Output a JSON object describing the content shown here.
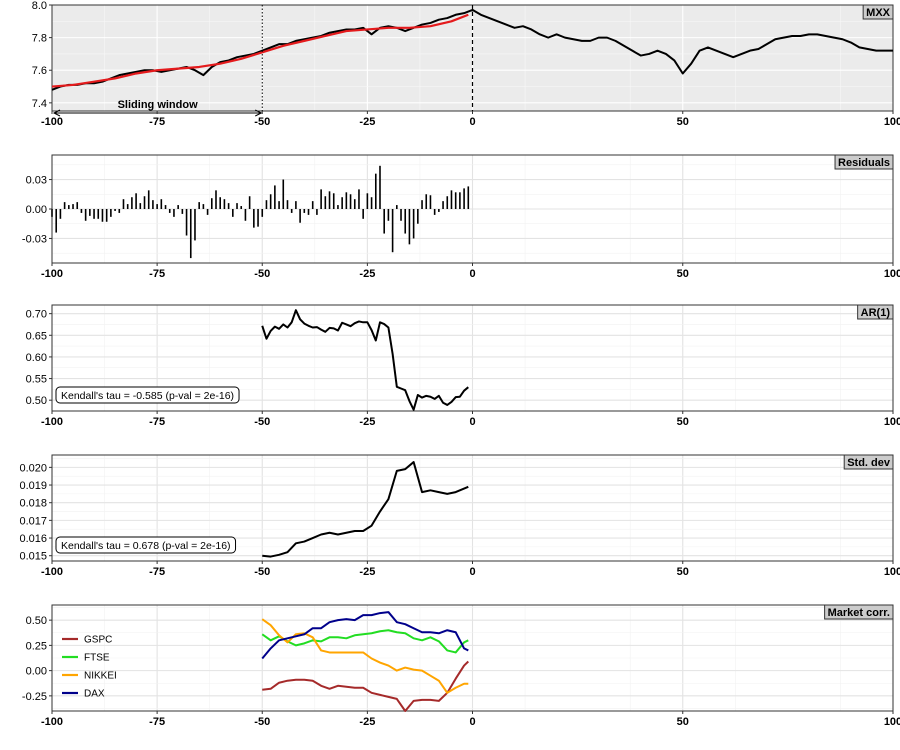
{
  "chart_data": [
    {
      "type": "line",
      "strip_label": "MXX",
      "ylim": [
        7.35,
        8.0
      ],
      "xlim": [
        -100,
        100
      ],
      "yticks": [
        7.4,
        7.6,
        7.8,
        8.0
      ],
      "ytick_labels": [
        "7.4",
        "7.6",
        "7.8",
        "8.0"
      ],
      "xticks": [
        -100,
        -75,
        -50,
        -25,
        0,
        50,
        100
      ],
      "xtick_labels": [
        "-100",
        "-75",
        "-50",
        "-25",
        "0",
        "50",
        "100"
      ],
      "background": "#ebebeb",
      "grid": true,
      "series": [
        {
          "color": "#000000",
          "x": [
            -100,
            -98,
            -96,
            -94,
            -92,
            -90,
            -88,
            -86,
            -84,
            -82,
            -80,
            -78,
            -76,
            -74,
            -72,
            -70,
            -68,
            -66,
            -64,
            -62,
            -60,
            -58,
            -56,
            -54,
            -52,
            -50,
            -48,
            -46,
            -44,
            -42,
            -40,
            -38,
            -36,
            -34,
            -32,
            -30,
            -28,
            -26,
            -24,
            -22,
            -20,
            -18,
            -16,
            -14,
            -12,
            -10,
            -8,
            -6,
            -4,
            -2,
            0,
            2,
            4,
            6,
            8,
            10,
            12,
            14,
            16,
            18,
            20,
            22,
            24,
            26,
            28,
            30,
            32,
            34,
            36,
            38,
            40,
            42,
            44,
            46,
            48,
            50,
            52,
            54,
            56,
            58,
            60,
            62,
            64,
            66,
            68,
            70,
            72,
            74,
            76,
            78,
            80,
            82,
            84,
            86,
            88,
            90,
            92,
            94,
            96,
            98,
            100
          ],
          "values": [
            7.48,
            7.5,
            7.51,
            7.51,
            7.52,
            7.52,
            7.53,
            7.55,
            7.57,
            7.58,
            7.59,
            7.6,
            7.6,
            7.59,
            7.6,
            7.61,
            7.62,
            7.6,
            7.57,
            7.62,
            7.65,
            7.66,
            7.68,
            7.69,
            7.7,
            7.72,
            7.74,
            7.76,
            7.76,
            7.78,
            7.79,
            7.8,
            7.81,
            7.83,
            7.84,
            7.85,
            7.85,
            7.86,
            7.82,
            7.86,
            7.87,
            7.86,
            7.84,
            7.86,
            7.88,
            7.89,
            7.91,
            7.92,
            7.94,
            7.95,
            7.97,
            7.94,
            7.92,
            7.9,
            7.88,
            7.86,
            7.87,
            7.85,
            7.82,
            7.8,
            7.82,
            7.8,
            7.79,
            7.78,
            7.78,
            7.8,
            7.8,
            7.78,
            7.75,
            7.72,
            7.69,
            7.7,
            7.72,
            7.7,
            7.66,
            7.58,
            7.64,
            7.72,
            7.74,
            7.72,
            7.7,
            7.68,
            7.7,
            7.72,
            7.73,
            7.76,
            7.79,
            7.8,
            7.81,
            7.81,
            7.82,
            7.82,
            7.81,
            7.8,
            7.79,
            7.77,
            7.74,
            7.73,
            7.72,
            7.72,
            7.72
          ]
        },
        {
          "color": "#e41a1c",
          "x": [
            -100,
            -95,
            -90,
            -85,
            -80,
            -75,
            -70,
            -65,
            -60,
            -55,
            -50,
            -45,
            -40,
            -35,
            -30,
            -25,
            -20,
            -15,
            -10,
            -5,
            -1
          ],
          "values": [
            7.5,
            7.51,
            7.53,
            7.55,
            7.58,
            7.6,
            7.61,
            7.62,
            7.64,
            7.67,
            7.71,
            7.75,
            7.78,
            7.81,
            7.84,
            7.85,
            7.86,
            7.86,
            7.87,
            7.9,
            7.94
          ]
        }
      ],
      "annotations": {
        "window_label": "Sliding window",
        "window_from": -100,
        "window_to": -50,
        "window_arrow_y": 7.35
      }
    },
    {
      "type": "bar",
      "strip_label": "Residuals",
      "ylim": [
        -0.055,
        0.055
      ],
      "xlim": [
        -100,
        100
      ],
      "yticks": [
        -0.03,
        0.0,
        0.03
      ],
      "ytick_labels": [
        "-0.03",
        "0.00",
        "0.03"
      ],
      "xticks": [
        -100,
        -75,
        -50,
        -25,
        0,
        50,
        100
      ],
      "xtick_labels": [
        "-100",
        "-75",
        "-50",
        "-25",
        "0",
        "50",
        "100"
      ],
      "background": "#ffffff",
      "grid": true,
      "x": [
        -100,
        -99,
        -98,
        -97,
        -96,
        -95,
        -94,
        -93,
        -92,
        -91,
        -90,
        -89,
        -88,
        -87,
        -86,
        -85,
        -84,
        -83,
        -82,
        -81,
        -80,
        -79,
        -78,
        -77,
        -76,
        -75,
        -74,
        -73,
        -72,
        -71,
        -70,
        -69,
        -68,
        -67,
        -66,
        -65,
        -64,
        -63,
        -62,
        -61,
        -60,
        -59,
        -58,
        -57,
        -56,
        -55,
        -54,
        -53,
        -52,
        -51,
        -50,
        -49,
        -48,
        -47,
        -46,
        -45,
        -44,
        -43,
        -42,
        -41,
        -40,
        -39,
        -38,
        -37,
        -36,
        -35,
        -34,
        -33,
        -32,
        -31,
        -30,
        -29,
        -28,
        -27,
        -26,
        -25,
        -24,
        -23,
        -22,
        -21,
        -20,
        -19,
        -18,
        -17,
        -16,
        -15,
        -14,
        -13,
        -12,
        -11,
        -10,
        -9,
        -8,
        -7,
        -6,
        -5,
        -4,
        -3,
        -2,
        -1
      ],
      "values": [
        -0.008,
        -0.024,
        -0.01,
        0.007,
        0.004,
        0.005,
        0.007,
        -0.004,
        -0.012,
        -0.007,
        -0.01,
        -0.01,
        -0.013,
        -0.013,
        -0.008,
        -0.002,
        -0.004,
        0.01,
        0.005,
        0.012,
        0.016,
        0.006,
        0.013,
        0.019,
        0.009,
        0.005,
        0.01,
        0.004,
        -0.004,
        -0.008,
        0.004,
        -0.005,
        -0.027,
        -0.05,
        -0.032,
        0.007,
        0.005,
        -0.006,
        0.011,
        0.019,
        0.012,
        0.01,
        0.006,
        -0.008,
        0.006,
        0.003,
        -0.012,
        0.013,
        -0.019,
        -0.018,
        -0.008,
        0.009,
        0.015,
        0.024,
        0.008,
        0.03,
        0.009,
        -0.004,
        0.008,
        -0.014,
        -0.004,
        -0.006,
        0.008,
        -0.006,
        0.02,
        0.013,
        0.018,
        0.016,
        0.004,
        0.012,
        0.017,
        0.015,
        0.01,
        0.02,
        -0.01,
        0.016,
        0.012,
        0.036,
        0.044,
        -0.025,
        -0.012,
        -0.044,
        0.004,
        -0.012,
        -0.025,
        -0.036,
        -0.03,
        -0.015,
        0.009,
        0.015,
        0.014,
        -0.006,
        -0.003,
        0.008,
        0.013,
        0.019,
        0.017,
        0.017,
        0.021,
        0.023
      ]
    },
    {
      "type": "line",
      "strip_label": "AR(1)",
      "ylim": [
        0.475,
        0.72
      ],
      "xlim": [
        -100,
        100
      ],
      "yticks": [
        0.5,
        0.55,
        0.6,
        0.65,
        0.7
      ],
      "ytick_labels": [
        "0.50",
        "0.55",
        "0.60",
        "0.65",
        "0.70"
      ],
      "xticks": [
        -100,
        -75,
        -50,
        -25,
        0,
        50,
        100
      ],
      "xtick_labels": [
        "-100",
        "-75",
        "-50",
        "-25",
        "0",
        "50",
        "100"
      ],
      "background": "#ffffff",
      "grid": true,
      "annotation": "Kendall's tau = -0.585 (p-val = 2e-16)",
      "series": [
        {
          "color": "#000000",
          "x": [
            -50,
            -49,
            -48,
            -47,
            -46,
            -45,
            -44,
            -43,
            -42,
            -41,
            -40,
            -39,
            -38,
            -37,
            -36,
            -35,
            -34,
            -33,
            -32,
            -31,
            -30,
            -29,
            -28,
            -27,
            -26,
            -25,
            -24,
            -23,
            -22,
            -21,
            -20,
            -19,
            -18,
            -17,
            -16,
            -15,
            -14,
            -13,
            -12,
            -11,
            -10,
            -9,
            -8,
            -7,
            -6,
            -5,
            -4,
            -3,
            -2,
            -1
          ],
          "values": [
            0.672,
            0.642,
            0.66,
            0.67,
            0.665,
            0.675,
            0.668,
            0.68,
            0.708,
            0.687,
            0.677,
            0.672,
            0.668,
            0.669,
            0.663,
            0.658,
            0.667,
            0.666,
            0.661,
            0.679,
            0.675,
            0.671,
            0.678,
            0.682,
            0.68,
            0.68,
            0.662,
            0.638,
            0.68,
            0.676,
            0.668,
            0.607,
            0.531,
            0.527,
            0.523,
            0.498,
            0.478,
            0.512,
            0.506,
            0.51,
            0.508,
            0.503,
            0.51,
            0.494,
            0.489,
            0.496,
            0.507,
            0.508,
            0.522,
            0.53
          ]
        }
      ]
    },
    {
      "type": "line",
      "strip_label": "Std. dev",
      "ylim": [
        0.0147,
        0.0207
      ],
      "xlim": [
        -100,
        100
      ],
      "yticks": [
        0.015,
        0.016,
        0.017,
        0.018,
        0.019,
        0.02
      ],
      "ytick_labels": [
        "0.015",
        "0.016",
        "0.017",
        "0.018",
        "0.019",
        "0.020"
      ],
      "xticks": [
        -100,
        -75,
        -50,
        -25,
        0,
        50,
        100
      ],
      "xtick_labels": [
        "-100",
        "-75",
        "-50",
        "-25",
        "0",
        "50",
        "100"
      ],
      "background": "#ffffff",
      "grid": true,
      "annotation": "Kendall's tau = 0.678 (p-val = 2e-16)",
      "series": [
        {
          "color": "#000000",
          "x": [
            -50,
            -48,
            -46,
            -44,
            -42,
            -40,
            -38,
            -36,
            -34,
            -32,
            -30,
            -28,
            -26,
            -24,
            -22,
            -20,
            -18,
            -16,
            -14,
            -12,
            -10,
            -8,
            -6,
            -4,
            -2,
            -1
          ],
          "values": [
            0.015,
            0.01495,
            0.01505,
            0.0152,
            0.0157,
            0.0158,
            0.016,
            0.0162,
            0.0163,
            0.0162,
            0.0163,
            0.0164,
            0.0164,
            0.0167,
            0.0175,
            0.0182,
            0.0198,
            0.0199,
            0.0203,
            0.0186,
            0.0187,
            0.0186,
            0.0185,
            0.0186,
            0.0188,
            0.0189
          ]
        }
      ]
    },
    {
      "type": "line",
      "strip_label": "Market corr.",
      "ylim": [
        -0.4,
        0.65
      ],
      "xlim": [
        -100,
        100
      ],
      "yticks": [
        -0.25,
        0.0,
        0.25,
        0.5
      ],
      "ytick_labels": [
        "-0.25",
        "0.00",
        "0.25",
        "0.50"
      ],
      "xticks": [
        -100,
        -75,
        -50,
        -25,
        0,
        50,
        100
      ],
      "xtick_labels": [
        "-100",
        "-75",
        "-50",
        "-25",
        "0",
        "50",
        "100"
      ],
      "background": "#ffffff",
      "grid": true,
      "legend_position": "left",
      "series": [
        {
          "name": "GSPC",
          "color": "#a52a2a",
          "x": [
            -50,
            -48,
            -46,
            -44,
            -42,
            -40,
            -38,
            -36,
            -34,
            -32,
            -30,
            -28,
            -26,
            -24,
            -22,
            -20,
            -18,
            -16,
            -14,
            -12,
            -10,
            -8,
            -6,
            -4,
            -2,
            -1
          ],
          "values": [
            -0.19,
            -0.18,
            -0.12,
            -0.1,
            -0.09,
            -0.09,
            -0.1,
            -0.15,
            -0.18,
            -0.15,
            -0.16,
            -0.17,
            -0.17,
            -0.22,
            -0.24,
            -0.26,
            -0.28,
            -0.4,
            -0.3,
            -0.29,
            -0.29,
            -0.3,
            -0.22,
            -0.08,
            0.05,
            0.09
          ]
        },
        {
          "name": "FTSE",
          "color": "#22dd22",
          "x": [
            -50,
            -48,
            -46,
            -44,
            -42,
            -40,
            -38,
            -36,
            -34,
            -32,
            -30,
            -28,
            -26,
            -24,
            -22,
            -20,
            -18,
            -16,
            -14,
            -12,
            -10,
            -8,
            -6,
            -4,
            -2,
            -1
          ],
          "values": [
            0.36,
            0.3,
            0.34,
            0.29,
            0.25,
            0.27,
            0.3,
            0.29,
            0.33,
            0.33,
            0.32,
            0.35,
            0.36,
            0.37,
            0.39,
            0.4,
            0.38,
            0.37,
            0.32,
            0.3,
            0.33,
            0.29,
            0.2,
            0.18,
            0.28,
            0.3
          ]
        },
        {
          "name": "NIKKEI",
          "color": "#ffa500",
          "x": [
            -50,
            -48,
            -46,
            -44,
            -42,
            -40,
            -38,
            -36,
            -34,
            -32,
            -30,
            -28,
            -26,
            -24,
            -22,
            -20,
            -18,
            -16,
            -14,
            -12,
            -10,
            -8,
            -6,
            -4,
            -2,
            -1
          ],
          "values": [
            0.51,
            0.45,
            0.35,
            0.28,
            0.36,
            0.37,
            0.33,
            0.2,
            0.18,
            0.18,
            0.18,
            0.18,
            0.18,
            0.12,
            0.08,
            0.05,
            0.0,
            0.03,
            0.01,
            0.0,
            -0.05,
            -0.1,
            -0.22,
            -0.17,
            -0.13,
            -0.13
          ]
        },
        {
          "name": "DAX",
          "color": "#00008b",
          "x": [
            -50,
            -48,
            -46,
            -44,
            -42,
            -40,
            -38,
            -36,
            -34,
            -32,
            -30,
            -28,
            -26,
            -24,
            -22,
            -20,
            -18,
            -16,
            -14,
            -12,
            -10,
            -8,
            -6,
            -4,
            -2,
            -1
          ],
          "values": [
            0.12,
            0.22,
            0.3,
            0.32,
            0.34,
            0.36,
            0.42,
            0.42,
            0.48,
            0.5,
            0.51,
            0.5,
            0.55,
            0.55,
            0.57,
            0.58,
            0.48,
            0.46,
            0.42,
            0.38,
            0.38,
            0.37,
            0.4,
            0.38,
            0.22,
            0.2
          ]
        }
      ]
    }
  ]
}
